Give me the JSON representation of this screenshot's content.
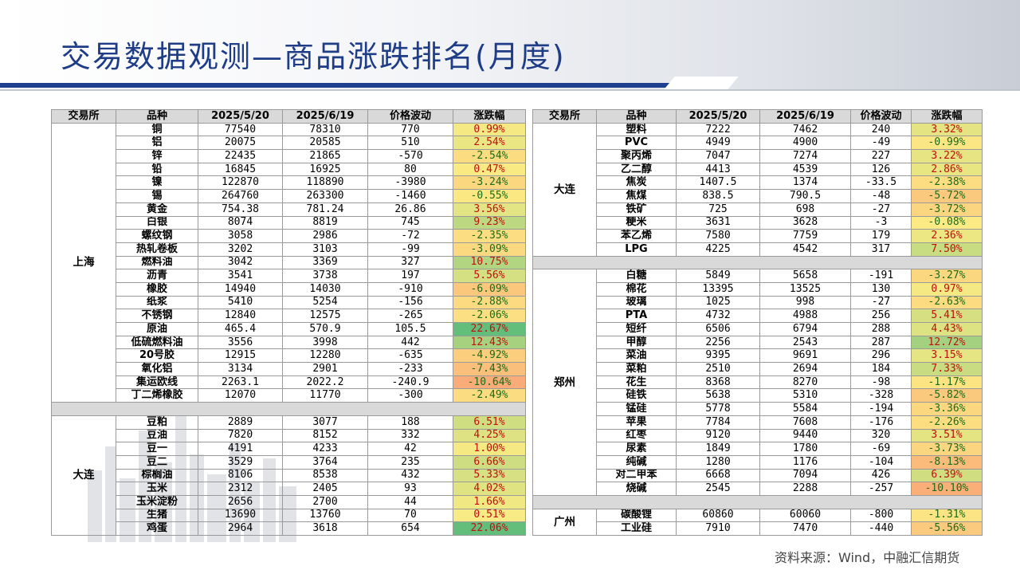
{
  "title": "交易数据观测—商品涨跌排名(月度)",
  "source": "资料来源：Wind，中融汇信期货",
  "headers": {
    "left": [
      "交易所",
      "品种",
      "2025/5/20",
      "2025/6/19",
      "价格波动",
      "涨跌幅"
    ],
    "right": [
      "交易所",
      "品种",
      "2025/5/20",
      "2025/6/19",
      "价格波动",
      "涨跌幅"
    ]
  },
  "left_groups": [
    {
      "exchange": "上海",
      "rows": [
        [
          "铜",
          "77540",
          "78310",
          "770",
          "0.99%"
        ],
        [
          "铝",
          "20075",
          "20585",
          "510",
          "2.54%"
        ],
        [
          "锌",
          "22435",
          "21865",
          "-570",
          "-2.54%"
        ],
        [
          "铅",
          "16845",
          "16925",
          "80",
          "0.47%"
        ],
        [
          "镍",
          "122870",
          "118890",
          "-3980",
          "-3.24%"
        ],
        [
          "锡",
          "264760",
          "263300",
          "-1460",
          "-0.55%"
        ],
        [
          "黄金",
          "754.38",
          "781.24",
          "26.86",
          "3.56%"
        ],
        [
          "白银",
          "8074",
          "8819",
          "745",
          "9.23%"
        ],
        [
          "螺纹钢",
          "3058",
          "2986",
          "-72",
          "-2.35%"
        ],
        [
          "热轧卷板",
          "3202",
          "3103",
          "-99",
          "-3.09%"
        ],
        [
          "燃料油",
          "3042",
          "3369",
          "327",
          "10.75%"
        ],
        [
          "沥青",
          "3541",
          "3738",
          "197",
          "5.56%"
        ],
        [
          "橡胶",
          "14940",
          "14030",
          "-910",
          "-6.09%"
        ],
        [
          "纸浆",
          "5410",
          "5254",
          "-156",
          "-2.88%"
        ],
        [
          "不锈钢",
          "12840",
          "12575",
          "-265",
          "-2.06%"
        ],
        [
          "原油",
          "465.4",
          "570.9",
          "105.5",
          "22.67%"
        ],
        [
          "低硫燃料油",
          "3556",
          "3998",
          "442",
          "12.43%"
        ],
        [
          "20号胶",
          "12915",
          "12280",
          "-635",
          "-4.92%"
        ],
        [
          "氧化铝",
          "3134",
          "2901",
          "-233",
          "-7.43%"
        ],
        [
          "集运欧线",
          "2263.1",
          "2022.2",
          "-240.9",
          "-10.64%"
        ],
        [
          "丁二烯橡胶",
          "12070",
          "11770",
          "-300",
          "-2.49%"
        ]
      ]
    },
    {
      "exchange": "大连",
      "rows": [
        [
          "豆粕",
          "2889",
          "3077",
          "188",
          "6.51%"
        ],
        [
          "豆油",
          "7820",
          "8152",
          "332",
          "4.25%"
        ],
        [
          "豆一",
          "4191",
          "4233",
          "42",
          "1.00%"
        ],
        [
          "豆二",
          "3529",
          "3764",
          "235",
          "6.66%"
        ],
        [
          "棕榈油",
          "8106",
          "8538",
          "432",
          "5.33%"
        ],
        [
          "玉米",
          "2312",
          "2405",
          "93",
          "4.02%"
        ],
        [
          "玉米淀粉",
          "2656",
          "2700",
          "44",
          "1.66%"
        ],
        [
          "生猪",
          "13690",
          "13760",
          "70",
          "0.51%"
        ],
        [
          "鸡蛋",
          "2964",
          "3618",
          "654",
          "22.06%"
        ]
      ]
    }
  ],
  "right_groups": [
    {
      "exchange": "大连",
      "rows": [
        [
          "塑料",
          "7222",
          "7462",
          "240",
          "3.32%"
        ],
        [
          "PVC",
          "4949",
          "4900",
          "-49",
          "-0.99%"
        ],
        [
          "聚丙烯",
          "7047",
          "7274",
          "227",
          "3.22%"
        ],
        [
          "乙二醇",
          "4413",
          "4539",
          "126",
          "2.86%"
        ],
        [
          "焦炭",
          "1407.5",
          "1374",
          "-33.5",
          "-2.38%"
        ],
        [
          "焦煤",
          "838.5",
          "790.5",
          "-48",
          "-5.72%"
        ],
        [
          "铁矿",
          "725",
          "698",
          "-27",
          "-3.72%"
        ],
        [
          "粳米",
          "3631",
          "3628",
          "-3",
          "-0.08%"
        ],
        [
          "苯乙烯",
          "7580",
          "7759",
          "179",
          "2.36%"
        ],
        [
          "LPG",
          "4225",
          "4542",
          "317",
          "7.50%"
        ]
      ]
    },
    {
      "exchange": "郑州",
      "rows": [
        [
          "白糖",
          "5849",
          "5658",
          "-191",
          "-3.27%"
        ],
        [
          "棉花",
          "13395",
          "13525",
          "130",
          "0.97%"
        ],
        [
          "玻璃",
          "1025",
          "998",
          "-27",
          "-2.63%"
        ],
        [
          "PTA",
          "4732",
          "4988",
          "256",
          "5.41%"
        ],
        [
          "短纤",
          "6506",
          "6794",
          "288",
          "4.43%"
        ],
        [
          "甲醇",
          "2256",
          "2543",
          "287",
          "12.72%"
        ],
        [
          "菜油",
          "9395",
          "9691",
          "296",
          "3.15%"
        ],
        [
          "菜粕",
          "2510",
          "2694",
          "184",
          "7.33%"
        ],
        [
          "花生",
          "8368",
          "8270",
          "-98",
          "-1.17%"
        ],
        [
          "硅铁",
          "5638",
          "5310",
          "-328",
          "-5.82%"
        ],
        [
          "锰硅",
          "5778",
          "5584",
          "-194",
          "-3.36%"
        ],
        [
          "苹果",
          "7784",
          "7608",
          "-176",
          "-2.26%"
        ],
        [
          "红枣",
          "9120",
          "9440",
          "320",
          "3.51%"
        ],
        [
          "尿素",
          "1849",
          "1780",
          "-69",
          "-3.73%"
        ],
        [
          "纯碱",
          "1280",
          "1176",
          "-104",
          "-8.13%"
        ],
        [
          "对二甲苯",
          "6668",
          "7094",
          "426",
          "6.39%"
        ],
        [
          "烧碱",
          "2545",
          "2288",
          "-257",
          "-10.10%"
        ]
      ]
    },
    {
      "exchange": "广州",
      "rows": [
        [
          "碳酸锂",
          "60860",
          "60060",
          "-800",
          "-1.31%"
        ],
        [
          "工业硅",
          "7910",
          "7470",
          "-440",
          "-5.56%"
        ]
      ]
    }
  ]
}
